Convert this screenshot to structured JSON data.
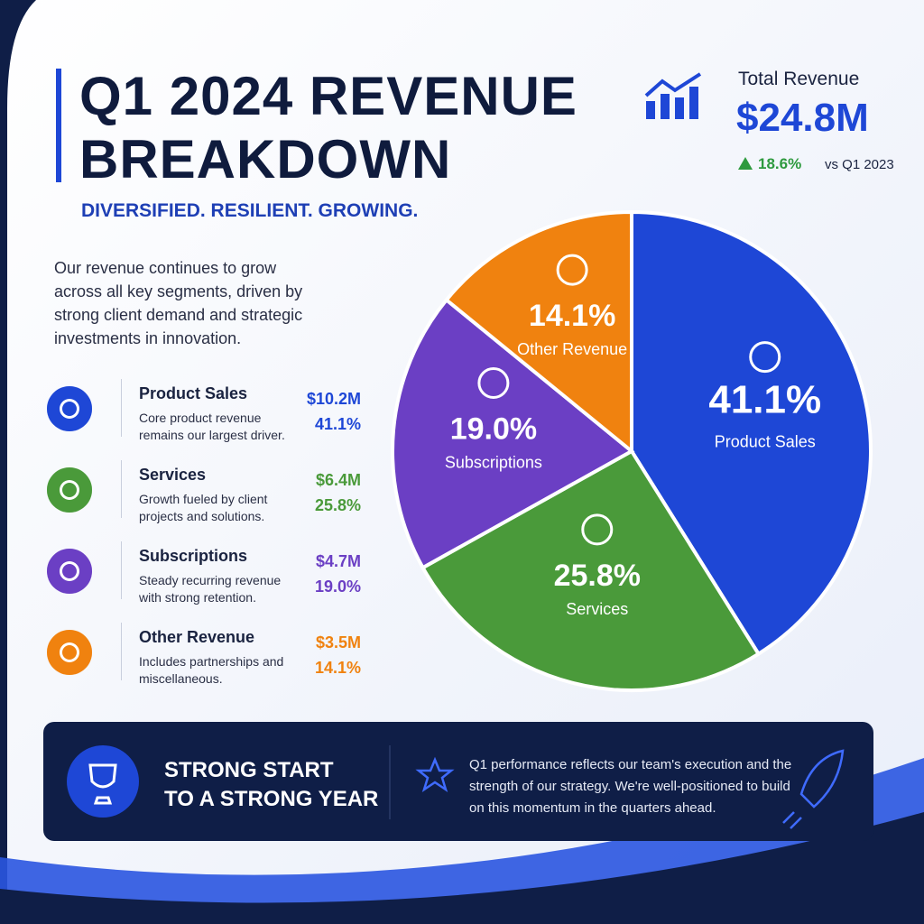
{
  "header": {
    "title_line1": "Q1 2024 REVENUE",
    "title_line2": "BREAKDOWN",
    "tagline": "DIVERSIFIED. RESILIENT. GROWING."
  },
  "kpi": {
    "label": "Total Revenue",
    "value": "$24.8M",
    "change": "18.6%",
    "comparison": "vs Q1 2023"
  },
  "intro": "Our revenue continues to grow across all key segments, driven by strong client demand and strategic investments in innovation.",
  "segments": [
    {
      "amount": "$10.2M",
      "description": "Core product revenue remains our largest driver."
    },
    {
      "amount": "$6.4M",
      "description": "Growth fueled by client projects and solutions."
    },
    {
      "amount": "$4.7M",
      "description": "Steady recurring revenue with strong retention."
    },
    {
      "amount": "$3.5M",
      "description": "Includes partnerships and miscellaneous."
    }
  ],
  "chart_data": {
    "type": "pie",
    "categories": [
      "Product Sales",
      "Services",
      "Subscriptions",
      "Other Revenue"
    ],
    "values": [
      41.1,
      25.8,
      19.0,
      14.1
    ],
    "value_labels": [
      "41.1%",
      "25.8%",
      "19.0%",
      "14.1%"
    ],
    "colors": [
      "#1e47d6",
      "#4a9a3a",
      "#6b3fc4",
      "#f0820f"
    ]
  },
  "banner": {
    "headline_line1": "STRONG START",
    "headline_line2": "TO A STRONG YEAR",
    "text": "Q1 performance reflects our team's execution and the strength of our strategy. We're well-positioned to build on this momentum in the quarters ahead."
  }
}
